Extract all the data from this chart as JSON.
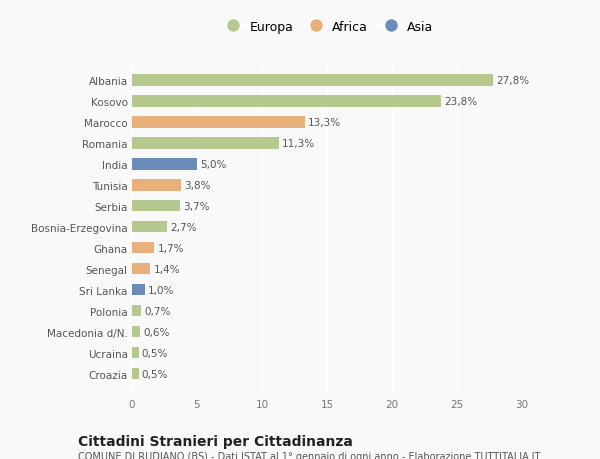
{
  "categories": [
    "Albania",
    "Kosovo",
    "Marocco",
    "Romania",
    "India",
    "Tunisia",
    "Serbia",
    "Bosnia-Erzegovina",
    "Ghana",
    "Senegal",
    "Sri Lanka",
    "Polonia",
    "Macedonia d/N.",
    "Ucraina",
    "Croazia"
  ],
  "values": [
    27.8,
    23.8,
    13.3,
    11.3,
    5.0,
    3.8,
    3.7,
    2.7,
    1.7,
    1.4,
    1.0,
    0.7,
    0.6,
    0.5,
    0.5
  ],
  "labels": [
    "27,8%",
    "23,8%",
    "13,3%",
    "11,3%",
    "5,0%",
    "3,8%",
    "3,7%",
    "2,7%",
    "1,7%",
    "1,4%",
    "1,0%",
    "0,7%",
    "0,6%",
    "0,5%",
    "0,5%"
  ],
  "continents": [
    "Europa",
    "Europa",
    "Africa",
    "Europa",
    "Asia",
    "Africa",
    "Europa",
    "Europa",
    "Africa",
    "Africa",
    "Asia",
    "Europa",
    "Europa",
    "Europa",
    "Europa"
  ],
  "colors": {
    "Europa": "#b5c98e",
    "Africa": "#e8b07a",
    "Asia": "#6b8cba"
  },
  "title": "Cittadini Stranieri per Cittadinanza",
  "subtitle": "COMUNE DI RUDIANO (BS) - Dati ISTAT al 1° gennaio di ogni anno - Elaborazione TUTTITALIA.IT",
  "xlim": [
    0,
    30
  ],
  "xticks": [
    0,
    5,
    10,
    15,
    20,
    25,
    30
  ],
  "background_color": "#f9f9f9",
  "bar_height": 0.55,
  "label_fontsize": 7.5,
  "tick_fontsize": 7.5,
  "title_fontsize": 10,
  "subtitle_fontsize": 7
}
